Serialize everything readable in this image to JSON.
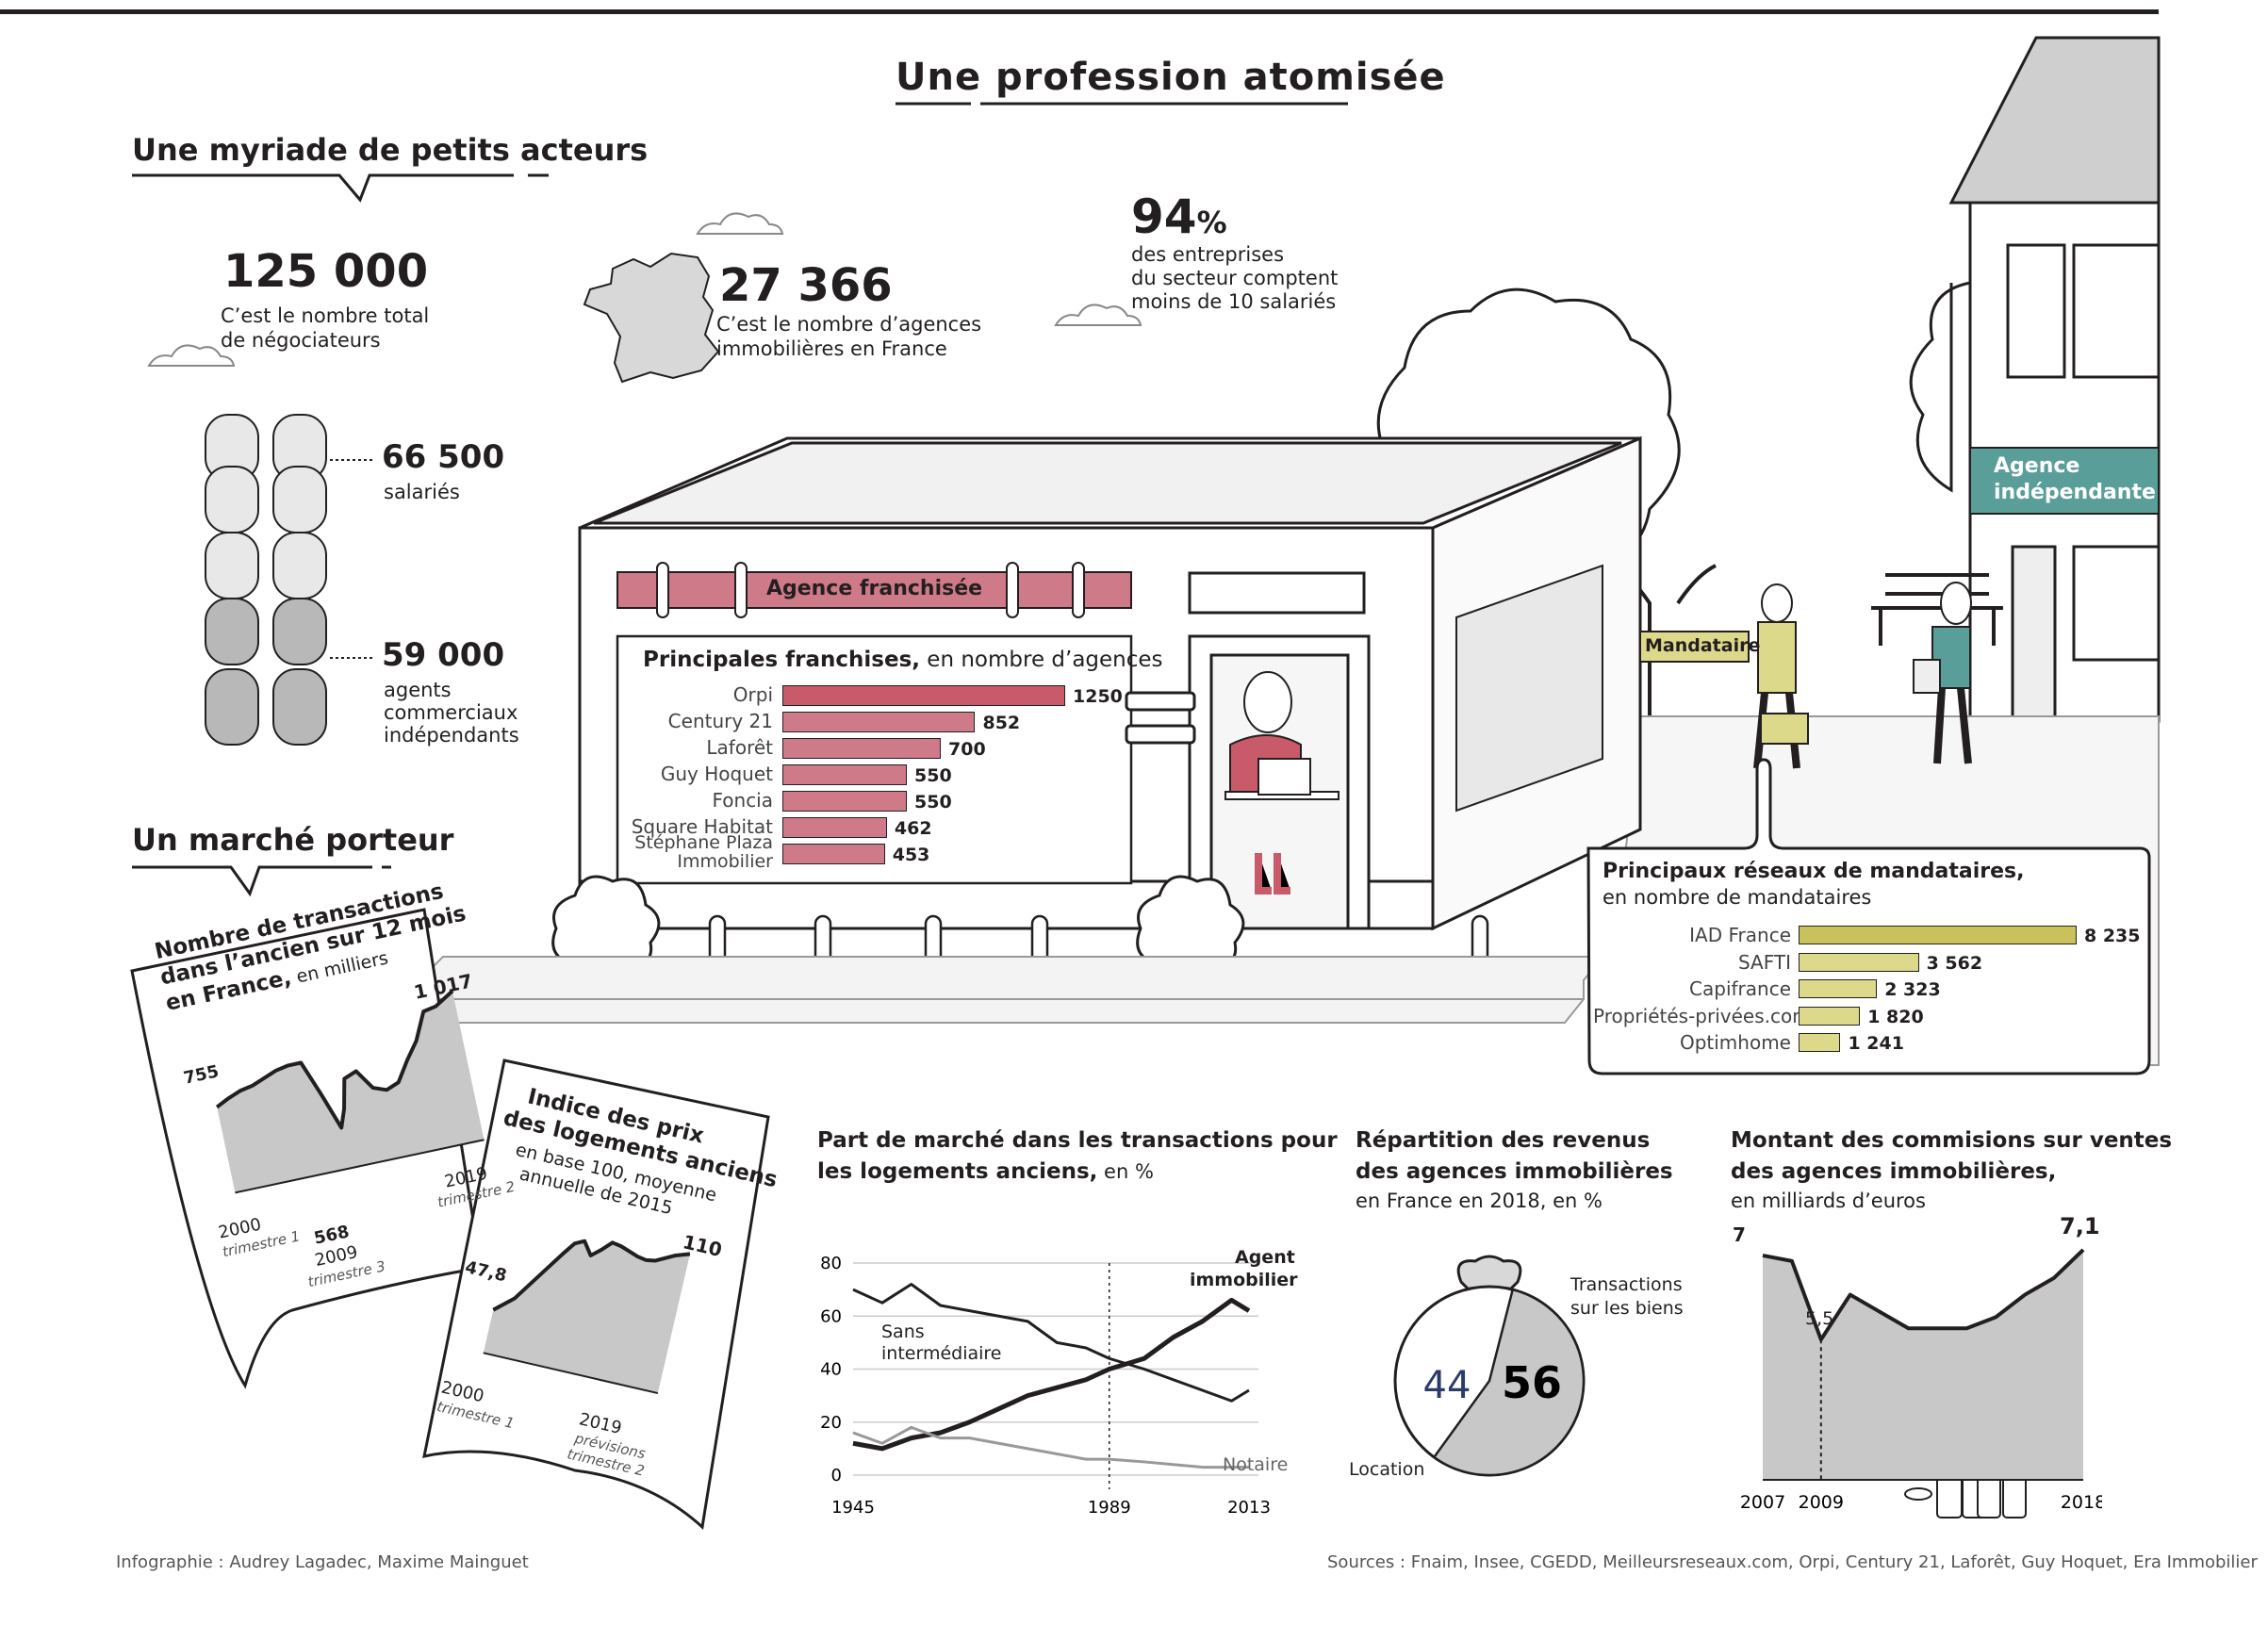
{
  "title": "Une profession atomisée",
  "myriade": {
    "heading": "Une myriade de petits acteurs",
    "total": {
      "value": "125 000",
      "text_line1": "C’est le nombre total",
      "text_line2": "de négociateurs"
    },
    "agencies": {
      "value": "27 366",
      "text_line1": "C’est le nombre d’agences",
      "text_line2": "immobilières en France"
    },
    "small_firms": {
      "value": "94",
      "unit": "%",
      "text_line1": "des entreprises",
      "text_line2": "du secteur comptent",
      "text_line3": "moins de 10 salariés"
    },
    "salaries": {
      "value": "66 500",
      "label": "salariés"
    },
    "agents": {
      "value": "59 000",
      "label_line1": "agents",
      "label_line2": "commerciaux",
      "label_line3": "indépendants"
    }
  },
  "marche": {
    "heading": "Un marché porteur"
  },
  "franchise": {
    "sign": "Agence franchisée",
    "chart_title_bold": "Principales franchises,",
    "chart_title_rest": " en nombre d’agences"
  },
  "independent_sign_line1": "Agence",
  "independent_sign_line2": "indépendante",
  "mandataire_tag": "Mandataire",
  "mandataires": {
    "title_line1": "Principaux réseaux de mandataires,",
    "title_line2": "en nombre de mandataires"
  },
  "transactions": {
    "title_line1": "Nombre de transactions",
    "title_line2": "dans l’ancien sur 12 mois",
    "title_line3": "en France,",
    "title_unit": " en milliers",
    "label_start": "755",
    "label_end": "1 017",
    "label_min": "568",
    "label_min_year": "2009",
    "label_min_q": "trimestre 3",
    "x_start": "2000",
    "x_start_q": "trimestre 1",
    "x_end": "2019",
    "x_end_q": "trimestre 2"
  },
  "indice": {
    "title_line1": "Indice des prix",
    "title_line2": "des logements anciens",
    "sub_line1": "en base 100, moyenne",
    "sub_line2": "annuelle de 2015",
    "label_start": "47,8",
    "label_end": "110",
    "x_start": "2000",
    "x_start_q": "trimestre 1",
    "x_end": "2019",
    "x_end_q1": "prévisions",
    "x_end_q2": "trimestre 2"
  },
  "part_marche": {
    "title_line1": "Part de marché dans les transactions pour",
    "title_line2": "les logements anciens,",
    "title_unit": " en %",
    "series_agent_line1": "Agent",
    "series_agent_line2": "immobilier",
    "series_sans_line1": "Sans",
    "series_sans_line2": "intermédiaire",
    "series_notaire": "Notaire"
  },
  "repartition": {
    "title_line1": "Répartition des revenus",
    "title_line2": "des agences immobilières",
    "sub": "en France en 2018, en %",
    "label_trans_line1": "Transactions",
    "label_trans_line2": "sur les biens",
    "label_location": "Location"
  },
  "commissions": {
    "title_line1": "Montant des commisions sur ventes",
    "title_line2": "des agences immobilières,",
    "sub": "en milliards d’euros",
    "label_start": "7",
    "label_min": "5,5",
    "label_end": "7,1"
  },
  "credits": "Infographie : Audrey Lagadec, Maxime Mainguet",
  "sources": "Sources : Fnaim, Insee, CGEDD, Meilleursreseaux.com, Orpi, Century 21, Laforêt, Guy Hoquet, Era Immobilier",
  "colors": {
    "franchise": "#cf7a88",
    "mandataire": "#ddd98a",
    "independent": "#5a9e9a",
    "grey_fill": "#c8c8c8",
    "ink": "#231f20"
  },
  "chart_data": [
    {
      "type": "bar",
      "title": "Principales franchises, en nombre d’agences",
      "categories": [
        "Orpi",
        "Century 21",
        "Laforêt",
        "Guy Hoquet",
        "Foncia",
        "Square Habitat",
        "Stéphane Plaza Immobilier"
      ],
      "values": [
        1250,
        852,
        700,
        550,
        550,
        462,
        453
      ],
      "value_labels": [
        "1250",
        "852",
        "700",
        "550",
        "550",
        "462",
        "453"
      ]
    },
    {
      "type": "bar",
      "title": "Principaux réseaux de mandataires, en nombre de mandataires",
      "categories": [
        "IAD France",
        "SAFTI",
        "Capifrance",
        "Propriétés-privées.com",
        "Optimhome"
      ],
      "values": [
        8235,
        3562,
        2323,
        1820,
        1241
      ],
      "value_labels": [
        "8 235",
        "3 562",
        "2 323",
        "1 820",
        "1 241"
      ]
    },
    {
      "type": "area",
      "title": "Nombre de transactions dans l’ancien sur 12 mois en France, en milliers",
      "x": [
        2000,
        2001,
        2002,
        2003,
        2004,
        2005,
        2006,
        2007,
        2008,
        2009,
        2009.5,
        2010,
        2011,
        2012,
        2013,
        2014,
        2015,
        2016,
        2017,
        2018,
        2019.5
      ],
      "values": [
        755,
        780,
        800,
        810,
        830,
        850,
        860,
        860,
        720,
        568,
        640,
        760,
        780,
        700,
        680,
        700,
        780,
        850,
        960,
        970,
        1017
      ]
    },
    {
      "type": "area",
      "title": "Indice des prix des logements anciens, en base 100, moyenne annuelle de 2015",
      "x": [
        2000,
        2002,
        2004,
        2006,
        2007,
        2008,
        2009,
        2010,
        2011,
        2012,
        2013,
        2014,
        2015,
        2016,
        2017,
        2018,
        2019.5
      ],
      "values": [
        47.8,
        58,
        75,
        92,
        100,
        103,
        95,
        100,
        106,
        105,
        103,
        101,
        100,
        101,
        104,
        107,
        110
      ]
    },
    {
      "type": "line",
      "title": "Part de marché dans les transactions pour les logements anciens, en %",
      "x": [
        1945,
        1950,
        1955,
        1960,
        1965,
        1970,
        1975,
        1980,
        1985,
        1989,
        1995,
        2000,
        2005,
        2010,
        2013
      ],
      "ylim": [
        0,
        80
      ],
      "yticks": [
        "0",
        "20",
        "40",
        "60",
        "80"
      ],
      "xticks": [
        "1945",
        "1989",
        "2013"
      ],
      "series": [
        {
          "name": "Agent immobilier",
          "values": [
            12,
            10,
            14,
            16,
            20,
            25,
            30,
            33,
            36,
            40,
            44,
            52,
            58,
            66,
            62
          ]
        },
        {
          "name": "Sans intermédiaire",
          "values": [
            70,
            65,
            72,
            64,
            62,
            60,
            58,
            50,
            48,
            44,
            40,
            36,
            32,
            28,
            32
          ]
        },
        {
          "name": "Notaire",
          "values": [
            16,
            12,
            18,
            14,
            14,
            12,
            10,
            8,
            6,
            6,
            5,
            4,
            3,
            3,
            3
          ]
        }
      ]
    },
    {
      "type": "pie",
      "title": "Répartition des revenus des agences immobilières en France en 2018, en %",
      "categories": [
        "Location",
        "Transactions sur les biens"
      ],
      "values": [
        44,
        56
      ]
    },
    {
      "type": "area",
      "title": "Montant des commisions sur ventes des agences immobilières, en milliards d’euros",
      "x": [
        2007,
        2008,
        2009,
        2010,
        2011,
        2012,
        2013,
        2014,
        2015,
        2016,
        2017,
        2018
      ],
      "values": [
        7,
        6.9,
        5.5,
        6.3,
        6.0,
        5.7,
        5.7,
        5.7,
        5.9,
        6.3,
        6.6,
        7.1
      ],
      "xticks": [
        "2007",
        "2009",
        "2018"
      ]
    }
  ]
}
